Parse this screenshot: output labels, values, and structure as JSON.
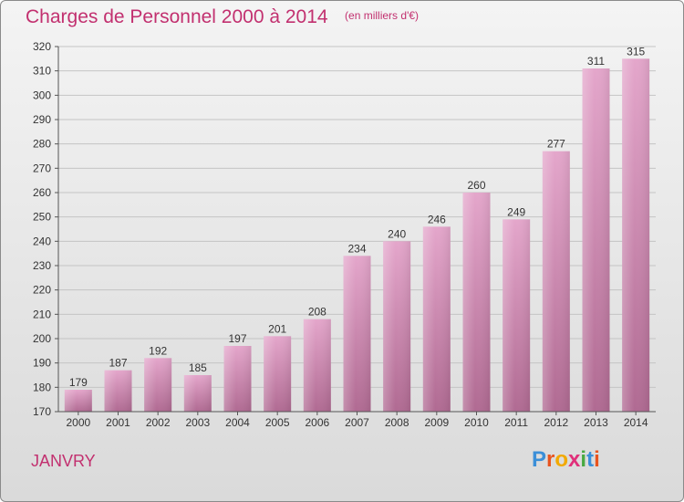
{
  "chart_data": {
    "type": "bar",
    "title": "Charges de Personnel 2000 à 2014",
    "subtitle": "(en milliers d'€)",
    "categories": [
      "2000",
      "2001",
      "2002",
      "2003",
      "2004",
      "2005",
      "2006",
      "2007",
      "2008",
      "2009",
      "2010",
      "2011",
      "2012",
      "2013",
      "2014"
    ],
    "values": [
      179,
      187,
      192,
      185,
      197,
      201,
      208,
      234,
      240,
      246,
      260,
      249,
      277,
      311,
      315
    ],
    "ylim": [
      170,
      320
    ],
    "yticks": [
      170,
      180,
      190,
      200,
      210,
      220,
      230,
      240,
      250,
      260,
      270,
      280,
      290,
      300,
      310,
      320
    ],
    "xlabel": "",
    "ylabel": "",
    "grid": true,
    "legend": "none",
    "bar_color_top": "#e4a6cb",
    "bar_color_bottom": "#b06a92",
    "title_color": "#c2306f"
  },
  "footer": {
    "commune": "JANVRY",
    "logo_letters": [
      {
        "ch": "P",
        "color": "#3b8fd8"
      },
      {
        "ch": "r",
        "color": "#e8541f"
      },
      {
        "ch": "o",
        "color": "#f2a900"
      },
      {
        "ch": "x",
        "color": "#e0307a"
      },
      {
        "ch": "i",
        "color": "#49a942"
      },
      {
        "ch": "t",
        "color": "#3b8fd8"
      },
      {
        "ch": "i",
        "color": "#e8541f"
      }
    ]
  }
}
